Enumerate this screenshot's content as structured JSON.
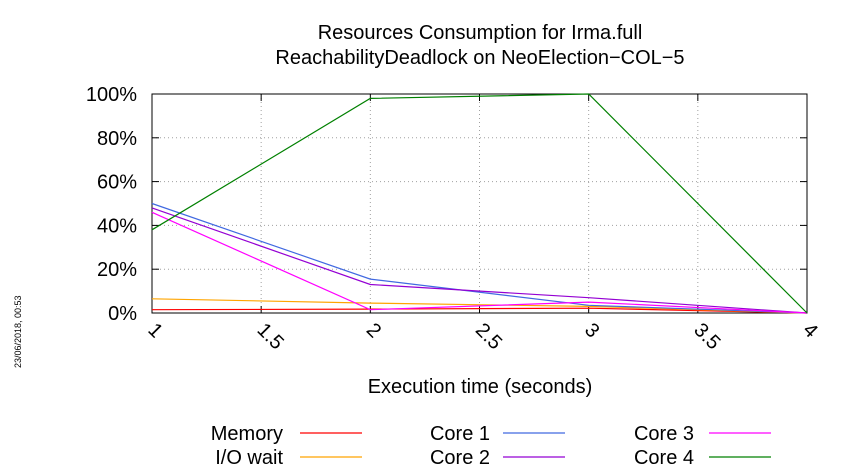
{
  "chart_data": {
    "type": "line",
    "title_lines": [
      "Resources Consumption for Irma.full",
      "ReachabilityDeadlock on NeoElection−COL−5"
    ],
    "xlabel": "Execution time (seconds)",
    "ylabel": "",
    "xlim": [
      1,
      4
    ],
    "ylim": [
      0,
      100
    ],
    "xticks": [
      1,
      1.5,
      2,
      2.5,
      3,
      3.5,
      4
    ],
    "xtick_labels": [
      "1",
      "1.5",
      "2",
      "2.5",
      "3",
      "3.5",
      "4"
    ],
    "yticks": [
      0,
      20,
      40,
      60,
      80,
      100
    ],
    "ytick_labels": [
      "0%",
      "20%",
      "40%",
      "60%",
      "80%",
      "100%"
    ],
    "grid": true,
    "legend_placement": "bottom",
    "timestamp": "23/06/2018, 00:53",
    "series": [
      {
        "name": "Memory",
        "color": "#ff0000",
        "x": [
          1,
          2,
          3,
          4
        ],
        "y": [
          1.5,
          1.8,
          2.2,
          0
        ]
      },
      {
        "name": "I/O wait",
        "color": "#ffa500",
        "x": [
          1,
          2,
          3,
          4
        ],
        "y": [
          6.5,
          4.5,
          3,
          0
        ]
      },
      {
        "name": "Core 1",
        "color": "#4169e1",
        "x": [
          1,
          2,
          3,
          4
        ],
        "y": [
          50,
          15.5,
          3.5,
          0
        ]
      },
      {
        "name": "Core 2",
        "color": "#9400d3",
        "x": [
          1,
          2,
          3,
          4
        ],
        "y": [
          48,
          13,
          7,
          0
        ]
      },
      {
        "name": "Core 3",
        "color": "#ff00ff",
        "x": [
          1,
          2,
          3,
          4
        ],
        "y": [
          46,
          1.5,
          5,
          0
        ]
      },
      {
        "name": "Core 4",
        "color": "#008000",
        "x": [
          1,
          2,
          3,
          4
        ],
        "y": [
          38,
          98,
          100,
          0
        ]
      }
    ]
  }
}
